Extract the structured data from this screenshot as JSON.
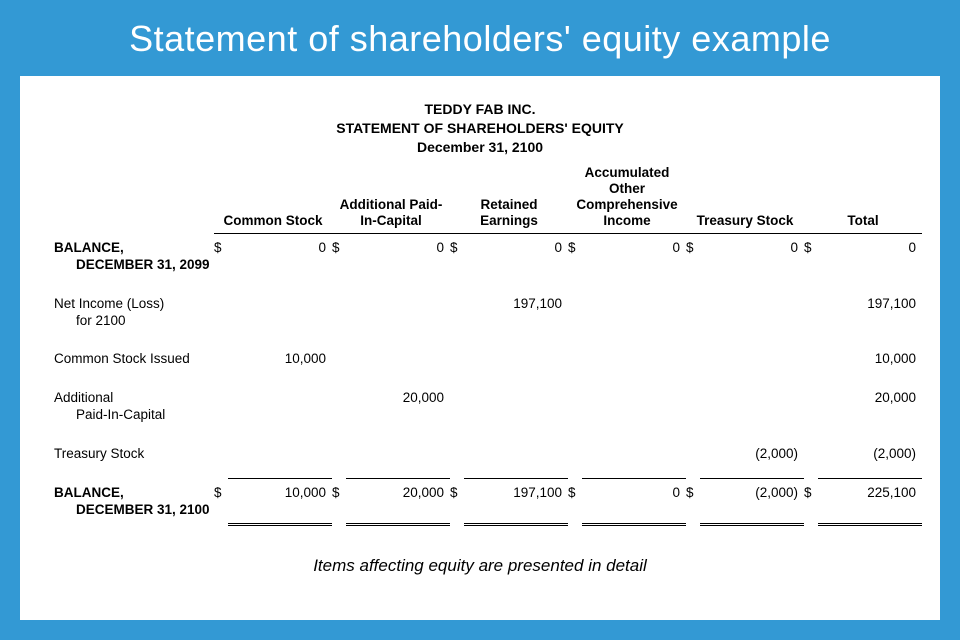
{
  "colors": {
    "page_bg": "#3399d4",
    "sheet_bg": "#ffffff",
    "text": "#000000",
    "banner_text": "#ffffff"
  },
  "banner": {
    "title": "Statement of shareholders' equity example"
  },
  "statement": {
    "company": "TEDDY FAB INC.",
    "title": "STATEMENT OF SHAREHOLDERS' EQUITY",
    "date": "December 31, 2100",
    "columns": [
      "Common Stock",
      "Additional Paid-In-Capital",
      "Retained Earnings",
      "Accumulated Other Comprehensive Income",
      "Treasury Stock",
      "Total"
    ],
    "currency_symbol": "$",
    "rows": {
      "opening": {
        "label_l1": "BALANCE,",
        "label_l2": "DECEMBER 31, 2099",
        "common_stock": "0",
        "apic": "0",
        "retained": "0",
        "aoci": "0",
        "treasury": "0",
        "total": "0"
      },
      "net_income": {
        "label_l1": "Net Income (Loss)",
        "label_l2": "for 2100",
        "retained": "197,100",
        "total": "197,100"
      },
      "common_issued": {
        "label_l1": "Common Stock Issued",
        "common_stock": "10,000",
        "total": "10,000"
      },
      "apic_row": {
        "label_l1": "Additional",
        "label_l2": "Paid-In-Capital",
        "apic": "20,000",
        "total": "20,000"
      },
      "treasury_row": {
        "label_l1": "Treasury Stock",
        "treasury": "(2,000)",
        "total": "(2,000)"
      },
      "closing": {
        "label_l1": "BALANCE,",
        "label_l2": "DECEMBER 31, 2100",
        "common_stock": "10,000",
        "apic": "20,000",
        "retained": "197,100",
        "aoci": "0",
        "treasury": "(2,000)",
        "total": "225,100"
      }
    }
  },
  "caption": "Items affecting equity are presented in detail"
}
